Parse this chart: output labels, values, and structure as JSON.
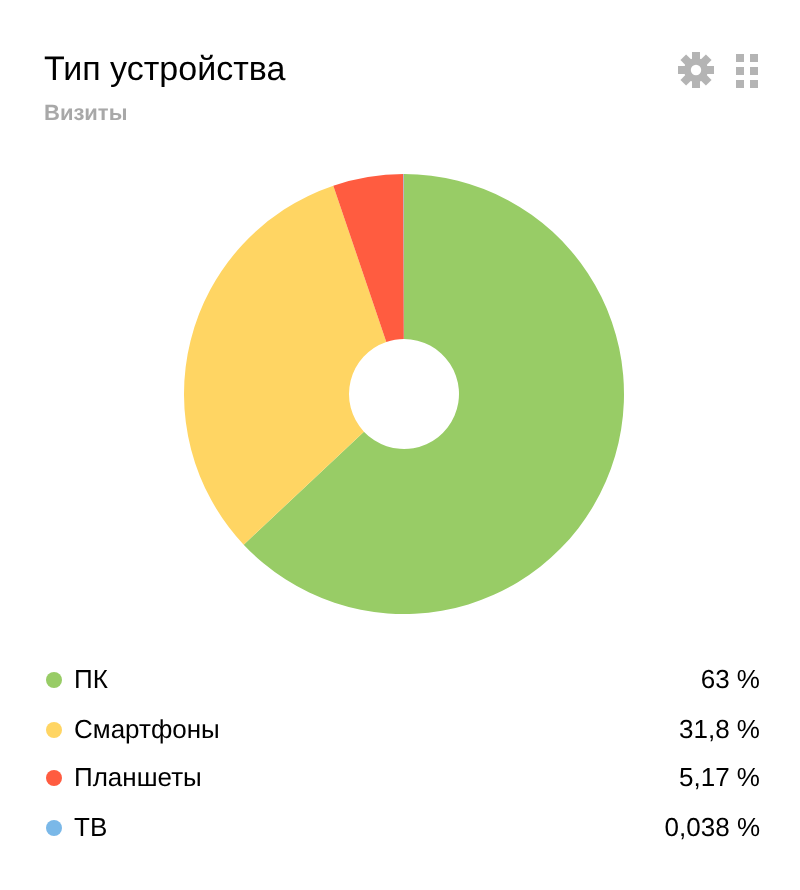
{
  "chart_data": {
    "type": "donut",
    "title": "Тип устройства",
    "subtitle": "Визиты",
    "categories": [
      "ПК",
      "Смартфоны",
      "Планшеты",
      "ТВ"
    ],
    "values": [
      63,
      31.8,
      5.17,
      0.038
    ],
    "colors": [
      "#98cc66",
      "#ffd563",
      "#ff5c40",
      "#7ab8e8"
    ],
    "value_labels": [
      "63 %",
      "31,8 %",
      "5,17 %",
      "0,038 %"
    ],
    "legend": "bottom"
  }
}
